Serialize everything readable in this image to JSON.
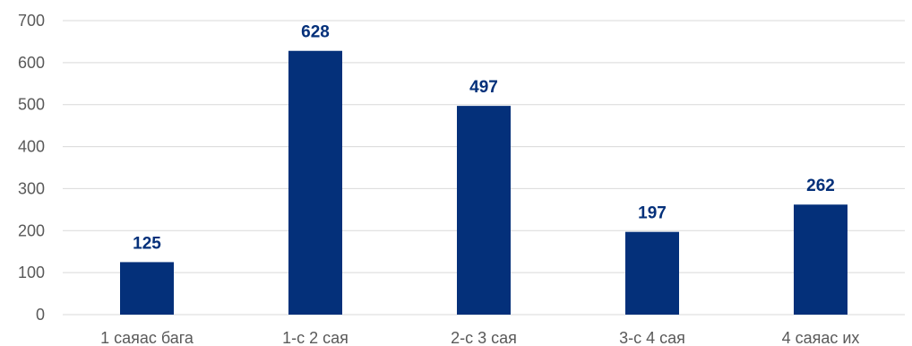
{
  "chart_data": {
    "type": "bar",
    "categories": [
      "1 саяас бага",
      "1-с 2 сая",
      "2-с 3 сая",
      "3-с 4 сая",
      "4 саяас их"
    ],
    "values": [
      125,
      628,
      497,
      197,
      262
    ],
    "data_labels": [
      "125",
      "628",
      "497",
      "197",
      "262"
    ],
    "title": "",
    "xlabel": "",
    "ylabel": "",
    "ylim": [
      0,
      700
    ],
    "yticks": [
      0,
      100,
      200,
      300,
      400,
      500,
      600,
      700
    ],
    "grid": true,
    "legend": "none",
    "bar_color": "#04307a"
  }
}
